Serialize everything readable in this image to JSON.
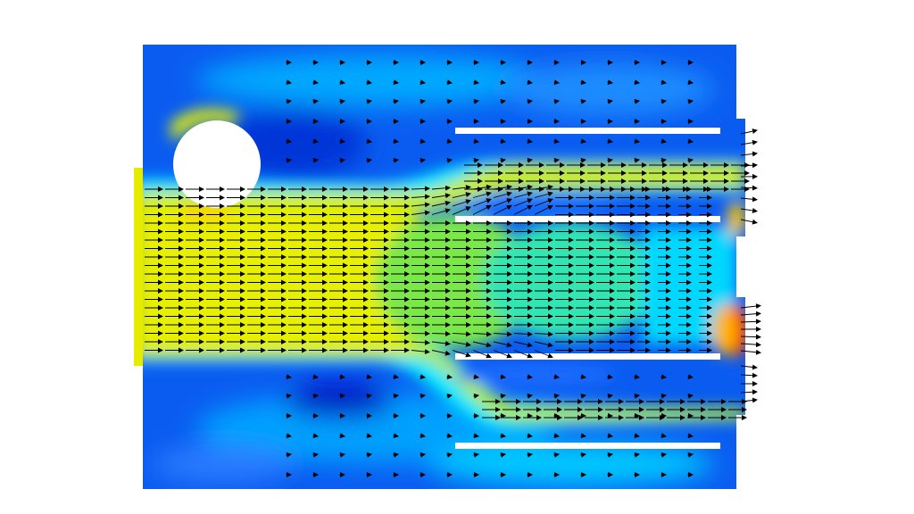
{
  "visualization": {
    "type": "flow-velocity-field",
    "colormap": [
      "#0000c8",
      "#0050ff",
      "#00b4ff",
      "#00ffe6",
      "#64ff64",
      "#e6f000",
      "#ffb400",
      "#e60000"
    ],
    "background": "#ffffff",
    "obstacle_color": "#ffffff",
    "arrow_color": "#000000"
  }
}
